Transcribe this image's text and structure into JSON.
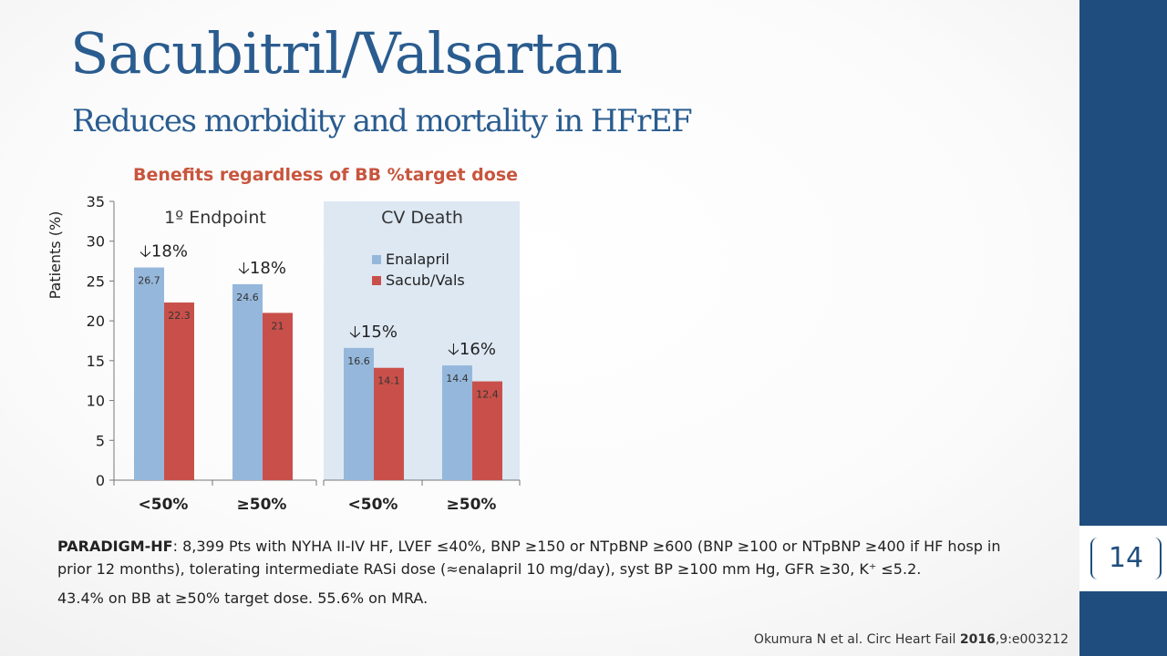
{
  "slide": {
    "title": "Sacubitril/Valsartan",
    "subtitle": "Reduces morbidity and mortality in HFrEF",
    "page_number": "14",
    "paradigm_label": "PARADIGM-HF",
    "paradigm_line1_rest": ": 8,399 Pts with NYHA II-IV HF, LVEF ≤40%, BNP ≥150 or NTpBNP ≥600 (BNP ≥100 or NTpBNP ≥400 if HF hosp in",
    "paradigm_line2": "prior 12 months), tolerating intermediate RASi dose (≈enalapril 10 mg/day), syst BP ≥100 mm Hg, GFR ≥30, K⁺ ≤5.2.",
    "paradigm_line3": "43.4% on BB at ≥50% target dose. 55.6% on MRA.",
    "citation_prefix": "Okumura N et al. Circ Heart Fail ",
    "citation_year": "2016",
    "citation_suffix": ",9:e003212"
  },
  "colors": {
    "title": "#2a5c8f",
    "chart_title": "#c8553d",
    "enalapril": "#95b7db",
    "sacub_vals": "#c9504a",
    "cv_panel_bg": "#dde8f3",
    "sidebar": "#1f4e7e"
  },
  "chart_data": {
    "type": "bar",
    "title": "Benefits regardless of BB %target dose",
    "ylabel": "Patients (%)",
    "ylim": [
      0,
      35
    ],
    "yticks": [
      0,
      5,
      10,
      15,
      20,
      25,
      30,
      35
    ],
    "categories": [
      "<50%",
      "≥50%",
      "<50%",
      "≥50%"
    ],
    "groups": [
      {
        "label": "1º Endpoint",
        "categories": [
          0,
          1
        ]
      },
      {
        "label": "CV Death",
        "categories": [
          2,
          3
        ],
        "shaded": true
      }
    ],
    "series": [
      {
        "name": "Enalapril",
        "values": [
          26.7,
          24.6,
          16.6,
          14.4
        ]
      },
      {
        "name": "Sacub/Vals",
        "values": [
          22.3,
          21,
          14.1,
          12.4
        ]
      }
    ],
    "reductions": [
      "18%",
      "18%",
      "15%",
      "16%"
    ],
    "reduction_arrow": "🡣",
    "legend": "inside CV Death panel, top",
    "grid": false
  }
}
